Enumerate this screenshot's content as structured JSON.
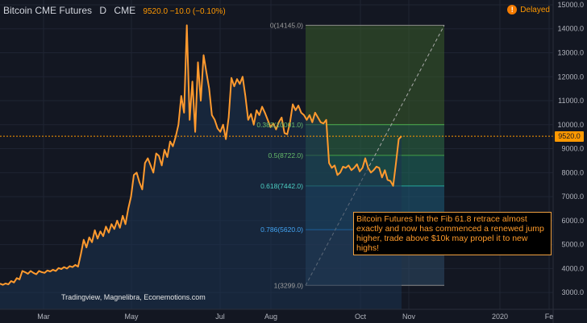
{
  "header": {
    "symbol": "Bitcoin CME Futures",
    "interval": "D",
    "exchange": "CME",
    "values": "9520.0  −10.0 (−0.10%)",
    "delayed_label": "Delayed"
  },
  "current_price_label": "9520.0",
  "annotation": "Bitcoin Futures hit the Fib 61.8 retrace almost exactly and now has commenced a renewed jump higher, trade above $10k may propel it to new highs!",
  "source": "Tradingview, Magnelibra, Econemotions.com",
  "chart_data": {
    "type": "line",
    "title": "Bitcoin CME Futures",
    "x_tick_labels": [
      "Mar",
      "May",
      "Jul",
      "Aug",
      "Oct",
      "Nov",
      "2020",
      "Fe"
    ],
    "y_tick_labels": [
      3000,
      4000,
      5000,
      6000,
      7000,
      8000,
      9000,
      10000,
      11000,
      12000,
      13000,
      14000,
      15000
    ],
    "ylim": [
      2300,
      15200
    ],
    "grid": true,
    "current_price": 9520,
    "fib_levels": [
      {
        "label": "0(14145.0)",
        "value": 14145
      },
      {
        "label": "0.382(10001.0)",
        "value": 10001
      },
      {
        "label": "0.5(8722.0)",
        "value": 8722
      },
      {
        "label": "0.618(7442.0)",
        "value": 7442
      },
      {
        "label": "0.786(5620.0)",
        "value": 5620
      },
      {
        "label": "1(3299.0)",
        "value": 3299
      }
    ],
    "fib_colors": [
      "#3b5d2a",
      "#2d6b45",
      "#1f6d5e",
      "#1d5c7a",
      "#2e4a66"
    ],
    "series": [
      {
        "color": "#ff9a2e",
        "values": [
          3370,
          3320,
          3380,
          3340,
          3480,
          3420,
          3600,
          3550,
          3900,
          3850,
          3780,
          3900,
          3820,
          3760,
          3900,
          3850,
          3820,
          3920,
          3880,
          3950,
          3900,
          4020,
          3980,
          4060,
          4000,
          4100,
          4060,
          4150,
          4080,
          4600,
          5200,
          4880,
          5300,
          5100,
          5600,
          5250,
          5550,
          5350,
          5750,
          5500,
          5850,
          5650,
          6000,
          5700,
          6200,
          5850,
          6500,
          7000,
          7900,
          8000,
          7600,
          7300,
          8400,
          8600,
          8300,
          8000,
          8800,
          8700,
          8300,
          8950,
          8650,
          9300,
          9100,
          9500,
          10000,
          11200,
          10500,
          14145,
          10200,
          11800,
          9700,
          12600,
          11000,
          12900,
          12200,
          11500,
          10400,
          10200,
          9850,
          9700,
          10000,
          9400,
          10300,
          11950,
          11600,
          11900,
          11700,
          12000,
          11200,
          10200,
          10450,
          10000,
          10600,
          10400,
          10750,
          10500,
          10200,
          9900,
          10050,
          9800,
          10100,
          10300,
          9650,
          9600,
          10100,
          10850,
          10600,
          10800,
          10500,
          10400,
          10200,
          10400,
          10100,
          10500,
          10300,
          10100,
          10050,
          10200,
          8400,
          8200,
          8300,
          7900,
          8000,
          8250,
          8200,
          8300,
          8100,
          8200,
          8350,
          8050,
          8200,
          8600,
          8200,
          8000,
          8100,
          8250,
          8200,
          7800,
          8100,
          7700,
          7650,
          7450,
          8400,
          9400,
          9520
        ]
      }
    ]
  }
}
